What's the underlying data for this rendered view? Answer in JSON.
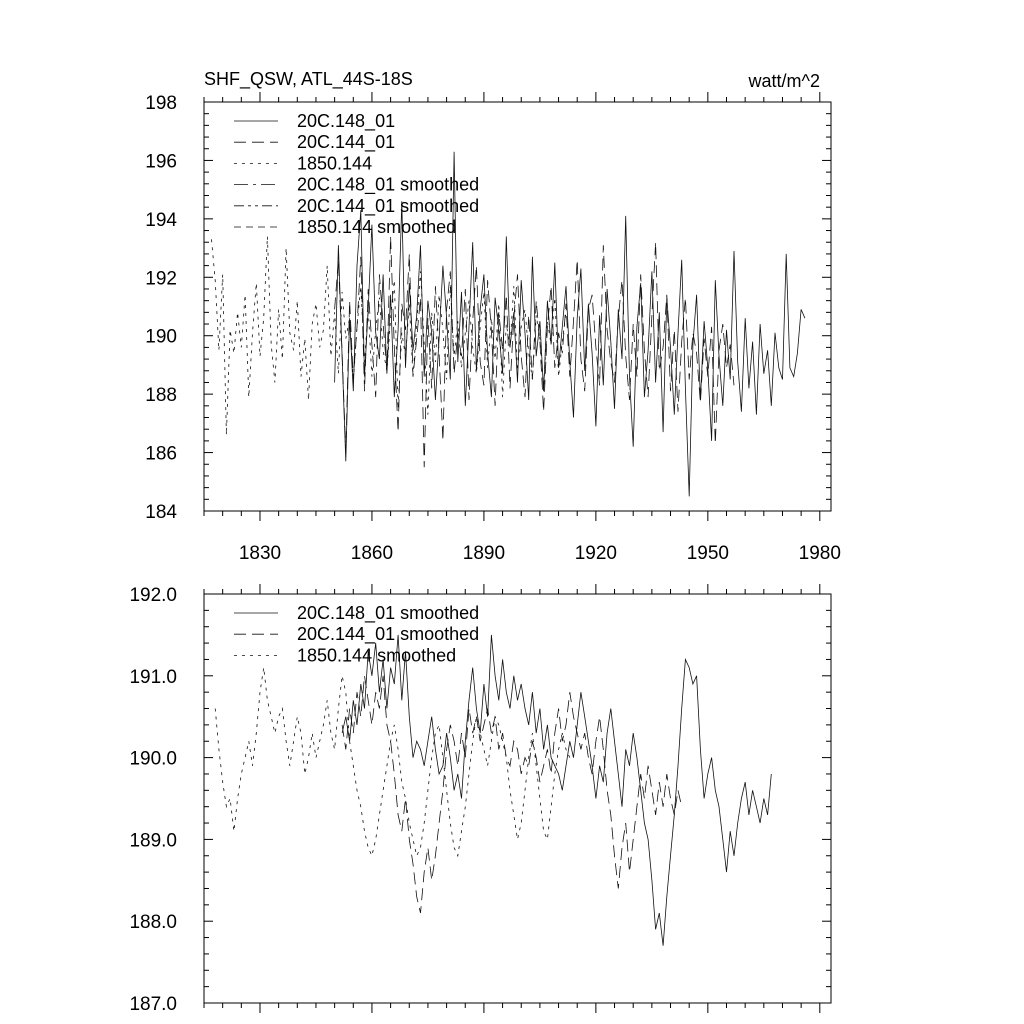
{
  "chart_data": [
    {
      "type": "line",
      "title": "SHF_QSW, ATL_44S-18S",
      "units": "watt/m^2",
      "xlim": [
        1815,
        1983
      ],
      "ylim": [
        184,
        198
      ],
      "xticks": [
        1830,
        1860,
        1890,
        1920,
        1950,
        1980
      ],
      "xtick_labels": [
        "1830",
        "1860",
        "1890",
        "1920",
        "1950",
        "1980"
      ],
      "yticks": [
        184,
        186,
        188,
        190,
        192,
        194,
        196,
        198
      ],
      "ytick_labels": [
        "184",
        "186",
        "188",
        "190",
        "192",
        "194",
        "196",
        "198"
      ],
      "legend": [
        "20C.148_01",
        "20C.144_01",
        "1850.144",
        "20C.148_01 smoothed",
        "20C.144_01 smoothed",
        "1850.144 smoothed"
      ],
      "series": [
        {
          "name": "20C.148_01",
          "dash": "solid",
          "x0": 1850,
          "step": 1,
          "values": [
            188.4,
            193.1,
            189.3,
            185.7,
            190.6,
            188.1,
            192.4,
            194.3,
            188.6,
            190.9,
            193.8,
            190.1,
            189.2,
            192.1,
            188.7,
            191.4,
            187.9,
            190.2,
            194.6,
            188.9,
            191.8,
            189.5,
            190.7,
            193.1,
            188.6,
            191.2,
            190.1,
            187.8,
            189.9,
            192.4,
            190.6,
            188.5,
            196.3,
            189.1,
            191.5,
            187.6,
            190.3,
            193.2,
            188.8,
            190.9,
            192.1,
            189.4,
            187.9,
            191.3,
            190.2,
            188.7,
            193.4,
            189.6,
            190.8,
            188.4,
            191.9,
            190.1,
            187.8,
            192.7,
            189.3,
            190.5,
            188.1,
            191.2,
            189.7,
            192.5,
            188.9,
            190.3,
            191.7,
            189.1,
            187.2,
            190.6,
            192.3,
            188.8,
            191.1,
            189.4,
            186.9,
            190.7,
            188.3,
            191.6,
            189.8,
            187.5,
            190.9,
            189.2,
            194.1,
            188.6,
            186.2,
            190.3,
            191.8,
            187.9,
            189.5,
            192.2,
            188.4,
            190.8,
            186.7,
            191.3,
            189.6,
            187.3,
            190.1,
            192.6,
            188.2,
            184.5,
            189.7,
            191.4,
            187.8,
            190.5,
            188.9,
            186.4,
            191.9,
            189.3,
            187.6,
            190.2,
            188.5,
            192.9,
            189.1,
            187.4,
            190.6,
            188.2,
            189.8,
            187.3,
            190.4,
            188.7,
            189.5,
            187.6,
            190.1,
            188.9,
            188.5,
            192.8,
            188.9,
            188.6,
            189.4,
            190.9,
            190.6
          ]
        },
        {
          "name": "20C.144_01",
          "dash": "12,6",
          "x0": 1850,
          "step": 1,
          "values": [
            190.9,
            192.6,
            189.4,
            186.0,
            191.2,
            188.5,
            190.3,
            192.7,
            188.1,
            191.6,
            189.7,
            187.9,
            192.1,
            190.4,
            188.8,
            193.4,
            189.6,
            186.7,
            191.1,
            190.2,
            192.8,
            188.6,
            189.9,
            191.3,
            185.5,
            190.6,
            188.2,
            191.7,
            189.4,
            186.4,
            190.9,
            192.2,
            188.7,
            190.1,
            189.3,
            191.6,
            187.8,
            190.5,
            192.4,
            189.1,
            188.3,
            191.9,
            190.2,
            187.6,
            190.8,
            189.5,
            191.4,
            188.2,
            190.6,
            192.1,
            189.3,
            187.9,
            190.7,
            188.5,
            191.2,
            189.8,
            187.4,
            190.3,
            191.7,
            188.9,
            190.1,
            189.4,
            191.1,
            188.6,
            190.5,
            192.6,
            189.2,
            188.1,
            190.9,
            191.4,
            189.6,
            188.3,
            193.1,
            190.2,
            189.1,
            188.4,
            190.6,
            191.9,
            189.3,
            187.8,
            190.4,
            188.6,
            192.1,
            189.5,
            187.9,
            190.7,
            193.2,
            188.8,
            189.6,
            191.4,
            188.1,
            190.2,
            187.4,
            189.8,
            191.3,
            188.5,
            190.1,
            189.4,
            187.7,
            189.9,
            188.6,
            190.3,
            186.3,
            189.5,
            190.4,
            188.9,
            189.7,
            188.3
          ]
        },
        {
          "name": "1850.144",
          "dash": "3,5",
          "x0": 1817,
          "step": 1,
          "values": [
            193.3,
            191.9,
            189.5,
            192.1,
            186.6,
            190.2,
            189.4,
            190.8,
            189.6,
            191.4,
            187.9,
            190.1,
            191.8,
            189.3,
            190.6,
            193.4,
            189.7,
            188.4,
            190.9,
            189.2,
            193.0,
            190.1,
            189.5,
            191.2,
            188.6,
            189.9,
            187.8,
            190.4,
            191.1,
            189.6,
            190.2,
            192.4,
            189.3,
            190.8,
            188.7,
            191.5,
            189.9,
            190.6,
            188.4,
            190.3,
            191.7,
            189.1,
            190.9,
            188.6,
            190.2,
            191.3,
            189.5,
            188.8,
            190.6,
            191.9,
            187.5,
            190.1,
            189.3,
            191.1,
            188.6,
            190.4,
            192.2,
            189.7,
            187.3,
            190.8,
            189.1,
            191.4,
            190.2,
            188.5,
            191.7,
            189.3,
            190.5,
            188.9,
            190.1,
            191.2,
            189.6,
            188.7,
            190.3,
            191.5,
            188.9,
            190.6,
            189.2,
            191.1,
            187.9,
            190.4,
            189.6,
            191.7,
            188.8,
            190.3,
            190.9,
            189.4,
            188.5,
            190.7,
            189.9,
            188.2,
            190.5,
            189.7,
            191.3,
            188.6,
            189.8,
            190.8
          ]
        }
      ]
    },
    {
      "type": "line",
      "xlim": [
        1815,
        1983
      ],
      "ylim": [
        187,
        192
      ],
      "xticks": [
        1830,
        1860,
        1890,
        1920,
        1950,
        1980
      ],
      "yticks": [
        187,
        188,
        189,
        190,
        191,
        192
      ],
      "ytick_labels": [
        "187.0",
        "188.0",
        "189.0",
        "190.0",
        "191.0",
        "192.0"
      ],
      "legend": [
        "20C.148_01 smoothed",
        "20C.144_01 smoothed",
        "1850.144 smoothed"
      ],
      "series": [
        {
          "name": "20C.148_01 smoothed",
          "dash": "solid",
          "x0": 1852,
          "step": 1,
          "values": [
            190.3,
            190.5,
            190.2,
            190.7,
            190.4,
            190.9,
            190.6,
            191.3,
            191.0,
            191.4,
            190.8,
            191.2,
            190.6,
            191.1,
            190.9,
            191.5,
            190.7,
            191.3,
            190.5,
            190.0,
            190.2,
            190.1,
            189.9,
            190.2,
            190.5,
            190.1,
            189.8,
            189.9,
            190.3,
            190.0,
            189.6,
            189.8,
            189.5,
            190.2,
            190.7,
            191.1,
            190.6,
            190.3,
            190.9,
            190.5,
            191.5,
            191.0,
            190.7,
            191.2,
            190.8,
            190.6,
            191.0,
            190.7,
            190.9,
            190.6,
            190.4,
            190.8,
            190.3,
            190.6,
            190.1,
            190.4,
            190.0,
            189.9,
            189.8,
            189.6,
            189.9,
            190.2,
            190.0,
            190.4,
            190.8,
            190.5,
            190.2,
            189.9,
            189.5,
            189.9,
            189.7,
            190.3,
            190.6,
            190.2,
            189.8,
            189.4,
            190.1,
            189.9,
            190.3,
            190.0,
            189.6,
            189.2,
            189.0,
            188.5,
            187.9,
            188.1,
            187.7,
            188.3,
            188.8,
            189.3,
            189.9,
            190.6,
            191.2,
            191.1,
            190.9,
            191.0,
            190.1,
            189.5,
            189.8,
            190.0,
            189.6,
            189.4,
            189.0,
            188.6,
            189.1,
            188.8,
            189.2,
            189.5,
            189.7,
            189.3,
            189.6,
            189.4,
            189.2,
            189.5,
            189.3,
            189.8
          ]
        },
        {
          "name": "20C.144_01 smoothed",
          "dash": "12,6",
          "x0": 1852,
          "step": 1,
          "values": [
            190.4,
            190.1,
            190.6,
            190.3,
            190.8,
            190.5,
            191.0,
            190.7,
            190.4,
            190.8,
            190.6,
            191.0,
            190.4,
            190.2,
            189.8,
            189.3,
            189.1,
            189.5,
            189.0,
            188.7,
            188.3,
            188.1,
            188.6,
            188.9,
            188.5,
            188.8,
            189.2,
            189.6,
            190.1,
            190.4,
            190.2,
            189.9,
            190.3,
            190.0,
            190.6,
            190.3,
            190.5,
            190.2,
            190.4,
            190.6,
            190.3,
            190.5,
            190.1,
            190.3,
            190.0,
            189.9,
            190.2,
            190.1,
            189.8,
            190.0,
            189.9,
            190.2,
            190.0,
            189.7,
            189.9,
            190.1,
            189.8,
            190.3,
            190.6,
            190.2,
            190.4,
            190.8,
            190.5,
            190.3,
            190.1,
            190.3,
            190.0,
            189.8,
            190.2,
            190.5,
            190.1,
            189.6,
            189.3,
            188.8,
            188.4,
            188.9,
            189.2,
            188.6,
            189.0,
            189.4,
            189.8,
            189.5,
            189.9,
            189.6,
            189.3,
            189.7,
            189.4,
            189.8,
            189.5,
            189.3,
            189.6,
            189.4
          ]
        },
        {
          "name": "1850.144 smoothed",
          "dash": "3,5",
          "x0": 1818,
          "step": 1,
          "values": [
            190.6,
            190.1,
            189.7,
            189.4,
            189.5,
            189.1,
            189.5,
            189.8,
            190.0,
            190.2,
            189.9,
            190.3,
            190.8,
            191.1,
            190.7,
            190.5,
            190.3,
            190.5,
            190.6,
            190.2,
            189.9,
            190.2,
            190.5,
            190.3,
            189.8,
            190.0,
            190.3,
            190.0,
            190.2,
            190.4,
            190.7,
            190.3,
            190.1,
            190.6,
            191.0,
            190.8,
            190.2,
            189.9,
            189.6,
            189.4,
            189.1,
            188.9,
            188.8,
            189.0,
            189.3,
            189.6,
            189.9,
            190.2,
            190.4,
            190.1,
            189.7,
            189.5,
            189.2,
            189.0,
            188.8,
            188.9,
            189.2,
            189.6,
            190.0,
            190.3,
            190.4,
            190.0,
            189.6,
            189.2,
            188.9,
            188.8,
            189.1,
            189.4,
            189.8,
            190.2,
            190.5,
            190.3,
            190.1,
            189.9,
            190.2,
            190.5,
            190.4,
            190.2,
            190.0,
            189.6,
            189.3,
            189.0,
            189.2,
            189.6,
            190.0,
            190.3,
            189.9,
            189.5,
            189.1,
            189.0,
            189.4,
            189.8,
            190.1,
            190.3,
            190.1,
            190.0
          ]
        }
      ]
    }
  ]
}
